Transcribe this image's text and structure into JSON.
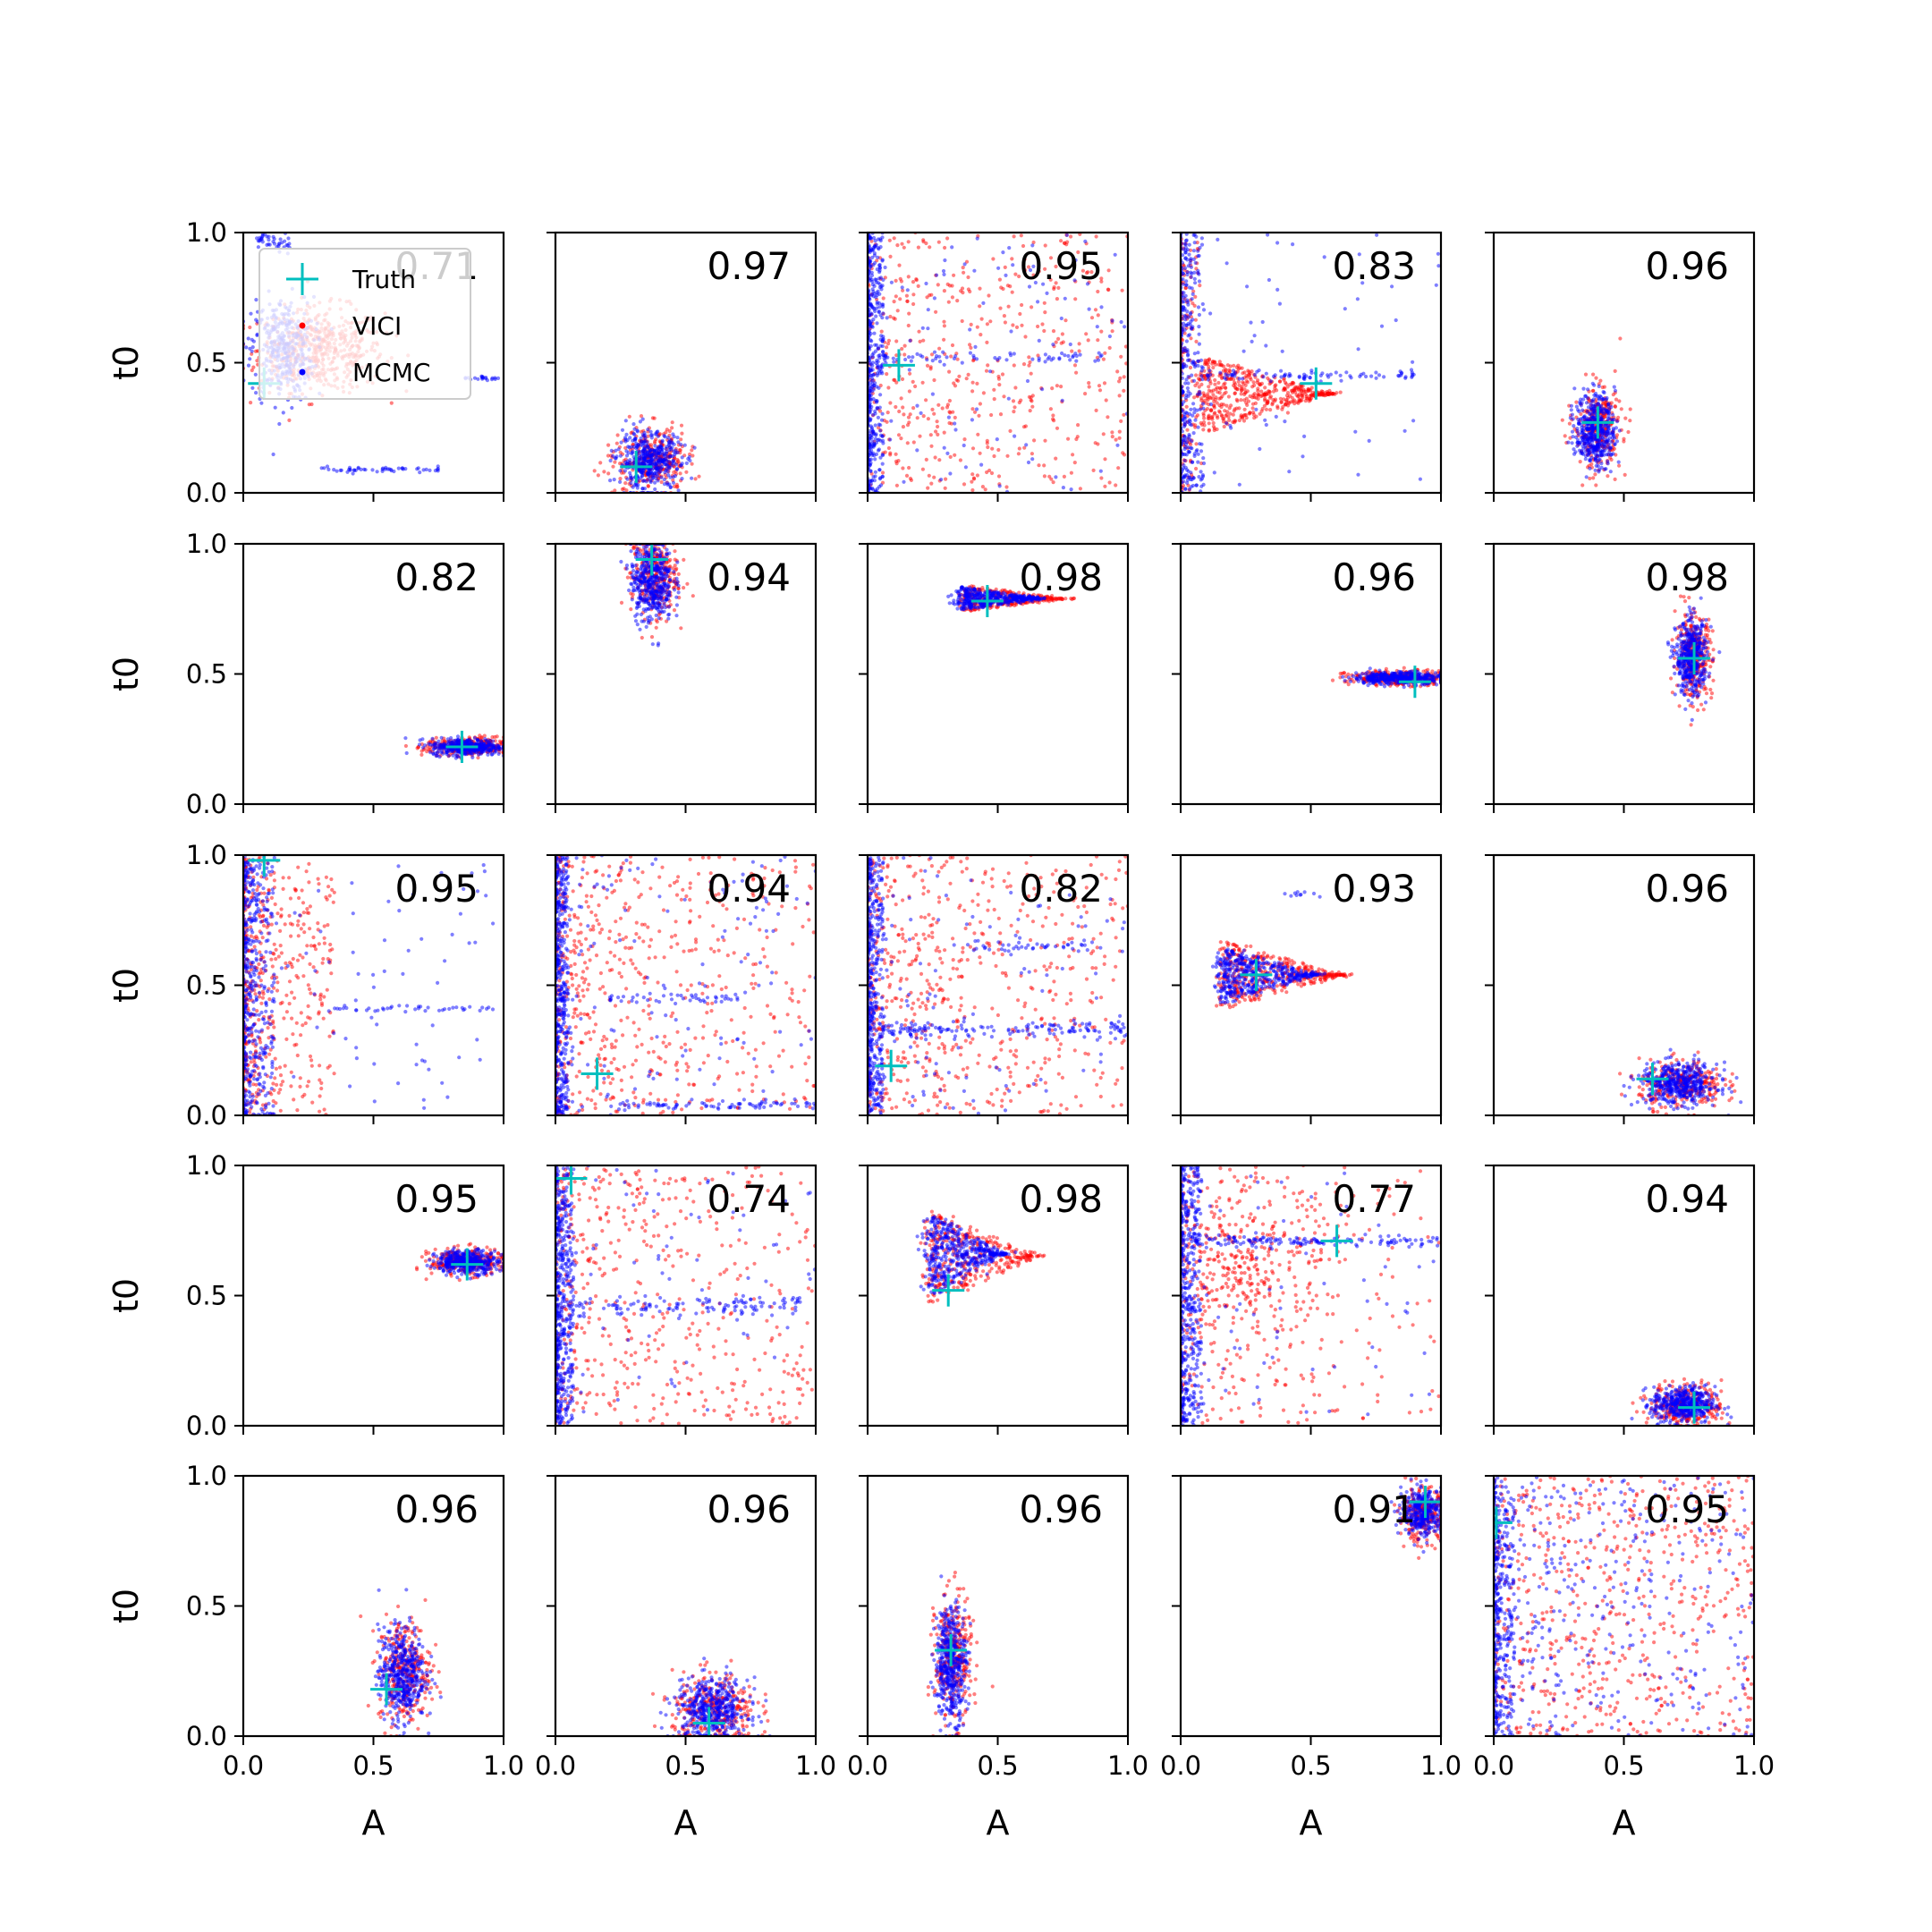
{
  "colors": {
    "vici": "#ff0000",
    "mcmc": "#0000ff",
    "truth": "#00bfbf",
    "axes": "#000000"
  },
  "legend": {
    "entries": [
      "Truth",
      "VICI",
      "MCMC"
    ],
    "placement": "upper-left of first panel"
  },
  "chart_data": {
    "type": "scatter",
    "layout": "5x5 grid of scatter panels",
    "xlabel": "A",
    "ylabel": "t0",
    "xlim": [
      0,
      1
    ],
    "ylim": [
      0,
      1
    ],
    "xticks": [
      "0.0",
      "0.5",
      "1.0"
    ],
    "yticks": [
      "0.0",
      "0.5",
      "1.0"
    ],
    "series": [
      {
        "name": "Truth",
        "marker": "+"
      },
      {
        "name": "VICI",
        "marker": "dot"
      },
      {
        "name": "MCMC",
        "marker": "dot"
      }
    ],
    "panels": [
      {
        "label": "0.71",
        "truth": [
          0.08,
          0.42
        ]
      },
      {
        "label": "0.97",
        "truth": [
          0.31,
          0.1
        ]
      },
      {
        "label": "0.95",
        "truth": [
          0.12,
          0.49
        ]
      },
      {
        "label": "0.83",
        "truth": [
          0.52,
          0.42
        ]
      },
      {
        "label": "0.96",
        "truth": [
          0.4,
          0.27
        ]
      },
      {
        "label": "0.82",
        "truth": [
          0.84,
          0.22
        ]
      },
      {
        "label": "0.94",
        "truth": [
          0.37,
          0.94
        ]
      },
      {
        "label": "0.98",
        "truth": [
          0.46,
          0.78
        ]
      },
      {
        "label": "0.96",
        "truth": [
          0.9,
          0.47
        ]
      },
      {
        "label": "0.98",
        "truth": [
          0.77,
          0.56
        ]
      },
      {
        "label": "0.95",
        "truth": [
          0.08,
          0.98
        ]
      },
      {
        "label": "0.94",
        "truth": [
          0.16,
          0.16
        ]
      },
      {
        "label": "0.82",
        "truth": [
          0.09,
          0.19
        ]
      },
      {
        "label": "0.93",
        "truth": [
          0.29,
          0.54
        ]
      },
      {
        "label": "0.96",
        "truth": [
          0.61,
          0.14
        ]
      },
      {
        "label": "0.95",
        "truth": [
          0.86,
          0.62
        ]
      },
      {
        "label": "0.74",
        "truth": [
          0.06,
          0.95
        ]
      },
      {
        "label": "0.98",
        "truth": [
          0.31,
          0.52
        ]
      },
      {
        "label": "0.77",
        "truth": [
          0.6,
          0.71
        ]
      },
      {
        "label": "0.94",
        "truth": [
          0.77,
          0.07
        ]
      },
      {
        "label": "0.96",
        "truth": [
          0.55,
          0.18
        ]
      },
      {
        "label": "0.96",
        "truth": [
          0.59,
          0.05
        ]
      },
      {
        "label": "0.96",
        "truth": [
          0.32,
          0.33
        ]
      },
      {
        "label": "0.91",
        "truth": [
          0.94,
          0.9
        ]
      },
      {
        "label": "0.95",
        "truth": [
          0.01,
          0.82
        ]
      }
    ]
  }
}
